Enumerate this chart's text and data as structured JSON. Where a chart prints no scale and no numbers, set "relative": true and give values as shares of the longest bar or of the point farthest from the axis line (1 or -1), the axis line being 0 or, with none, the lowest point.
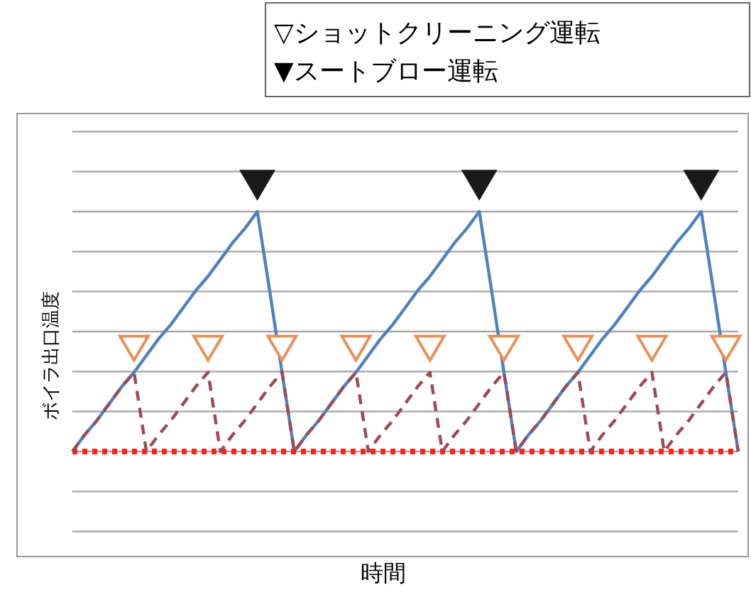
{
  "chart_data": {
    "type": "line",
    "relative": true,
    "ylabel": "ボイラ出口温度",
    "xlabel": "時間",
    "grid": true,
    "annotations": [
      "▽ショットクリーニング運転",
      "▼スートブロー運転"
    ],
    "categories": [
      null,
      null,
      null,
      null,
      null,
      null,
      null,
      null,
      null,
      null,
      null,
      null,
      null,
      null,
      null,
      null,
      null,
      null,
      null,
      null,
      null,
      null,
      null,
      null,
      null,
      null,
      null,
      null,
      null,
      null,
      null,
      null,
      null,
      null,
      null,
      null,
      null,
      null,
      null,
      null,
      null,
      null,
      null,
      null,
      null,
      null,
      null,
      null,
      null,
      null,
      null,
      null,
      null,
      null,
      null
    ],
    "series": [
      {
        "color": "#4f81bd",
        "line_style": "solid",
        "values": [
          0,
          0.07,
          0.13,
          0.2,
          0.27,
          0.33,
          0.4,
          0.47,
          0.53,
          0.6,
          0.67,
          0.73,
          0.8,
          0.87,
          0.93,
          1,
          0.67,
          0.33,
          0,
          0.07,
          0.13,
          0.2,
          0.27,
          0.33,
          0.4,
          0.47,
          0.53,
          0.6,
          0.67,
          0.73,
          0.8,
          0.87,
          0.93,
          1,
          0.67,
          0.33,
          0,
          0.07,
          0.13,
          0.2,
          0.27,
          0.33,
          0.4,
          0.47,
          0.53,
          0.6,
          0.67,
          0.73,
          0.8,
          0.87,
          0.93,
          1,
          0.67,
          0.33,
          0
        ]
      },
      {
        "color": "#ff2020",
        "line_style": "dotted",
        "values": [
          0,
          0,
          0,
          0,
          0,
          0,
          0,
          0,
          0,
          0,
          0,
          0,
          0,
          0,
          0,
          0,
          0,
          0,
          0,
          0,
          0,
          0,
          0,
          0,
          0,
          0,
          0,
          0,
          0,
          0,
          0,
          0,
          0,
          0,
          0,
          0,
          0,
          0,
          0,
          0,
          0,
          0,
          0,
          0,
          0,
          0,
          0,
          0,
          0,
          0,
          0,
          0,
          0,
          0,
          0
        ]
      },
      {
        "color": "#9c4a55",
        "line_style": "dashed",
        "values": [
          0,
          0.07,
          0.13,
          0.2,
          0.27,
          0.33,
          0,
          0.07,
          0.13,
          0.2,
          0.27,
          0.33,
          0,
          0.07,
          0.13,
          0.2,
          0.27,
          0.33,
          0,
          0.07,
          0.13,
          0.2,
          0.27,
          0.33,
          0,
          0.07,
          0.13,
          0.2,
          0.27,
          0.33,
          0,
          0.07,
          0.13,
          0.2,
          0.27,
          0.33,
          0,
          0.07,
          0.13,
          0.2,
          0.27,
          0.33,
          0,
          0.07,
          0.13,
          0.2,
          0.27,
          0.33,
          0,
          0.07,
          0.13,
          0.2,
          0.27,
          0.33,
          0
        ]
      }
    ]
  }
}
